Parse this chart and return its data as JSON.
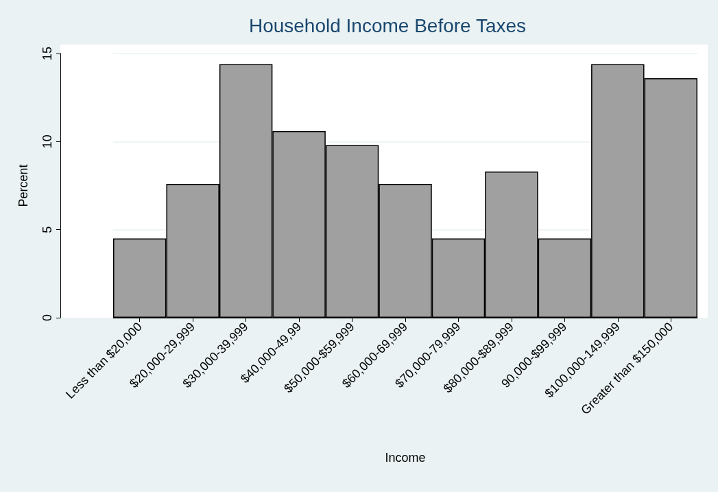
{
  "chart_data": {
    "type": "bar",
    "title": "Household Income Before Taxes",
    "xlabel": "Income",
    "ylabel": "Percent",
    "categories": [
      "Less than $20,000",
      "$20,000-29,999",
      "$30,000-39,999",
      "$40,000-49,99",
      "$50,000-$59,999",
      "$60,000-69,999",
      "$70,000-79,999",
      "$80,000-$89,999",
      "90,000-$99,999",
      "$100,000-149,999",
      "Greater than $150,000"
    ],
    "values": [
      4.5,
      7.6,
      14.4,
      10.6,
      9.8,
      7.6,
      4.5,
      8.3,
      4.5,
      14.4,
      13.6
    ],
    "color": "#a0a0a0",
    "ylim": [
      0,
      15
    ],
    "yticks": [
      0,
      5,
      10,
      15
    ],
    "grid": "y"
  }
}
